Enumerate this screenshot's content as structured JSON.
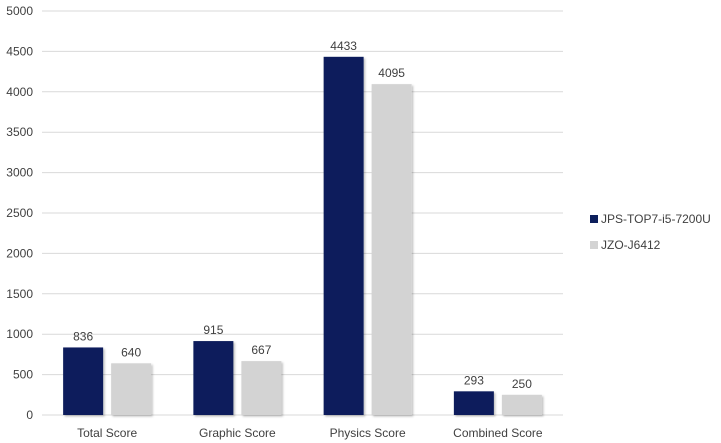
{
  "chart_data": {
    "type": "bar",
    "categories": [
      "Total Score",
      "Graphic Score",
      "Physics Score",
      "Combined Score"
    ],
    "series": [
      {
        "name": "JPS-TOP7-i5-7200U",
        "values": [
          836,
          915,
          4433,
          293
        ],
        "color": "#0d1f5c"
      },
      {
        "name": "JZO-J6412",
        "values": [
          640,
          667,
          4095,
          250
        ],
        "color": "#d3d3d3"
      }
    ],
    "title": "",
    "xlabel": "",
    "ylabel": "",
    "ylim": [
      0,
      5000
    ],
    "yticks": [
      0,
      500,
      1000,
      1500,
      2000,
      2500,
      3000,
      3500,
      4000,
      4500,
      5000
    ],
    "grid": true,
    "legend": "right"
  }
}
